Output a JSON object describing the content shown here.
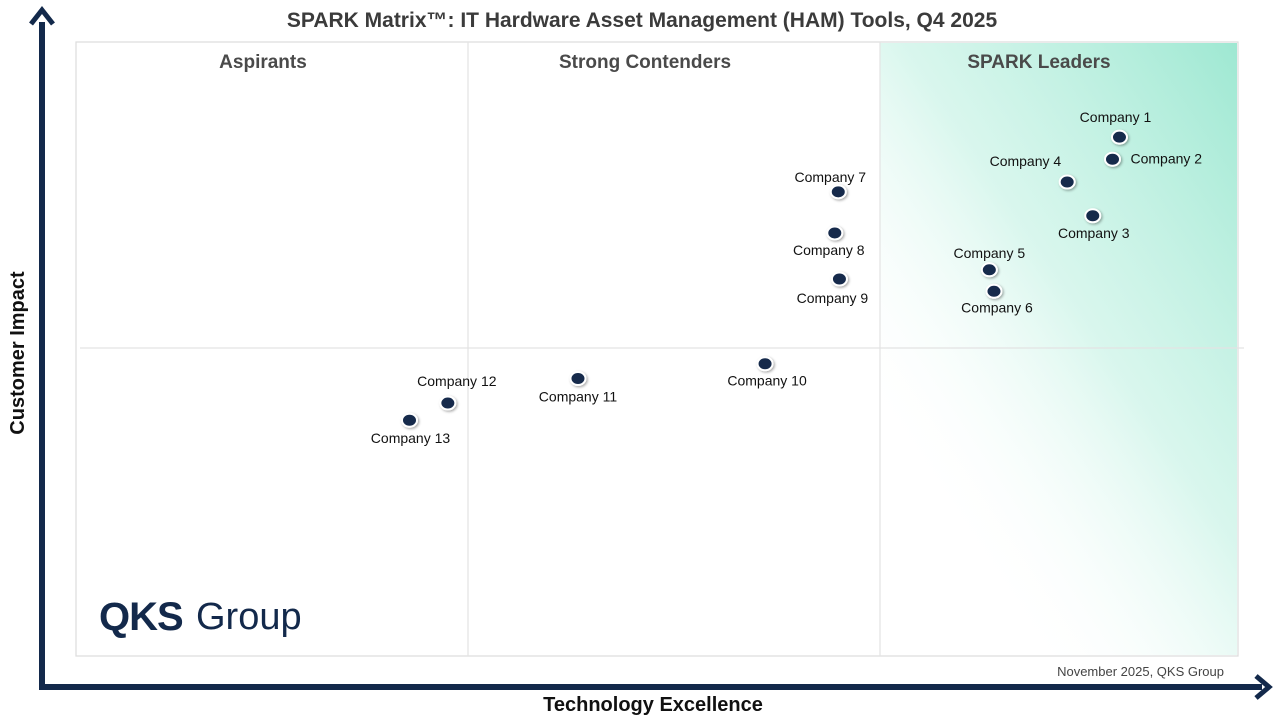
{
  "chart_data": {
    "type": "scatter",
    "title": "SPARK Matrix™: IT Hardware Asset Management (HAM) Tools, Q4 2025",
    "xlabel": "Technology Excellence",
    "ylabel": "Customer Impact",
    "quadrants": [
      "Aspirants",
      "Strong Contenders",
      "SPARK Leaders"
    ],
    "grid": false,
    "points": [
      {
        "label": "Company 1",
        "x": 0.898,
        "y": 0.845
      },
      {
        "label": "Company 2",
        "x": 0.892,
        "y": 0.809
      },
      {
        "label": "Company 3",
        "x": 0.875,
        "y": 0.717
      },
      {
        "label": "Company 4",
        "x": 0.853,
        "y": 0.772
      },
      {
        "label": "Company 5",
        "x": 0.786,
        "y": 0.629
      },
      {
        "label": "Company 6",
        "x": 0.79,
        "y": 0.594
      },
      {
        "label": "Company 7",
        "x": 0.656,
        "y": 0.756
      },
      {
        "label": "Company 8",
        "x": 0.653,
        "y": 0.689
      },
      {
        "label": "Company 9",
        "x": 0.657,
        "y": 0.614
      },
      {
        "label": "Company 10",
        "x": 0.593,
        "y": 0.476
      },
      {
        "label": "Company 11",
        "x": 0.432,
        "y": 0.452
      },
      {
        "label": "Company 12",
        "x": 0.32,
        "y": 0.412
      },
      {
        "label": "Company 13",
        "x": 0.287,
        "y": 0.384
      }
    ]
  },
  "logo": {
    "bold": "QKS",
    "light": "Group"
  },
  "footnote": "November 2025, QKS Group",
  "colors": {
    "axis": "#13294b",
    "marker": "#13294b",
    "leaders_gradient": "#9ee8d2"
  }
}
